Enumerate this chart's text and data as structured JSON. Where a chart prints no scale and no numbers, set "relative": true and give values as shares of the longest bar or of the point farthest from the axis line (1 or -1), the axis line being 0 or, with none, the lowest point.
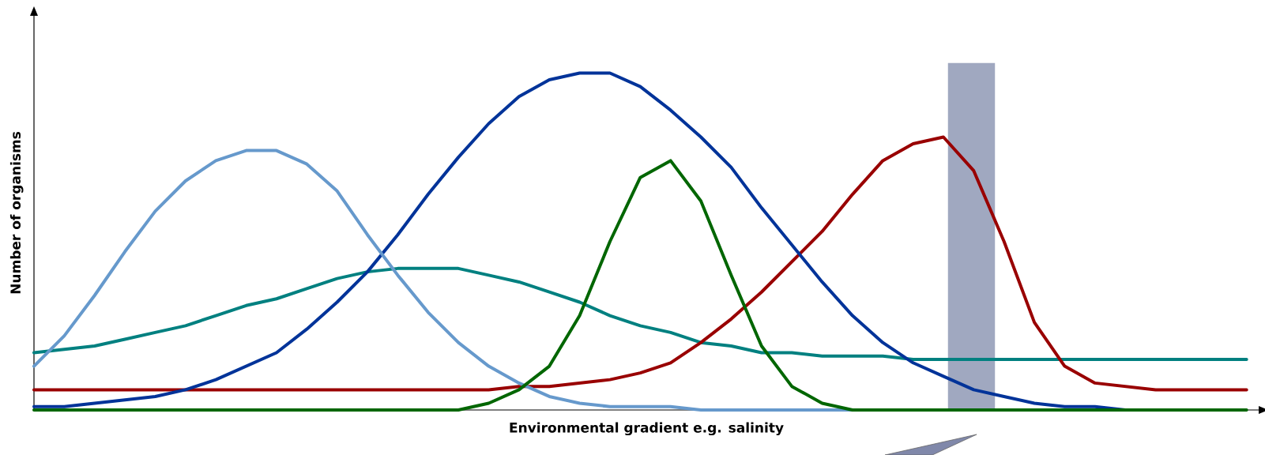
{
  "chart_data": {
    "type": "line",
    "relative": true,
    "xlabel": "Environmental gradient e.g. salinity",
    "ylabel": "Number of organisms",
    "categories": [
      null,
      null,
      null,
      null,
      null,
      null,
      null,
      null,
      null,
      null,
      null,
      null,
      null,
      null,
      null,
      null,
      null,
      null,
      null,
      null,
      null,
      null,
      null,
      null,
      null,
      null,
      null,
      null,
      null,
      null,
      null,
      null,
      null,
      null,
      null,
      null,
      null,
      null,
      null,
      null,
      null
    ],
    "series": [
      {
        "color": "#008080",
        "values": [
          0.17,
          0.18,
          0.19,
          0.21,
          0.23,
          0.25,
          0.28,
          0.31,
          0.33,
          0.36,
          0.39,
          0.41,
          0.42,
          0.42,
          0.42,
          0.4,
          0.38,
          0.35,
          0.32,
          0.28,
          0.25,
          0.23,
          0.2,
          0.19,
          0.17,
          0.17,
          0.16,
          0.16,
          0.16,
          0.15,
          0.15,
          0.15,
          0.15,
          0.15,
          0.15,
          0.15,
          0.15,
          0.15,
          0.15,
          0.15,
          0.15
        ]
      },
      {
        "color": "#990000",
        "values": [
          0.06,
          0.06,
          0.06,
          0.06,
          0.06,
          0.06,
          0.06,
          0.06,
          0.06,
          0.06,
          0.06,
          0.06,
          0.06,
          0.06,
          0.06,
          0.06,
          0.07,
          0.07,
          0.08,
          0.09,
          0.11,
          0.14,
          0.2,
          0.27,
          0.35,
          0.44,
          0.53,
          0.64,
          0.74,
          0.79,
          0.81,
          0.71,
          0.5,
          0.26,
          0.13,
          0.08,
          0.07,
          0.06,
          0.06,
          0.06,
          0.06
        ]
      },
      {
        "color": "#003399",
        "values": [
          0.01,
          0.01,
          0.02,
          0.03,
          0.04,
          0.06,
          0.09,
          0.13,
          0.17,
          0.24,
          0.32,
          0.41,
          0.52,
          0.64,
          0.75,
          0.85,
          0.93,
          0.98,
          1.0,
          1.0,
          0.96,
          0.89,
          0.81,
          0.72,
          0.6,
          0.49,
          0.38,
          0.28,
          0.2,
          0.14,
          0.1,
          0.06,
          0.04,
          0.02,
          0.01,
          0.01,
          0,
          0,
          null,
          null,
          null
        ]
      },
      {
        "color": "#6699cc",
        "values": [
          0.13,
          0.22,
          0.34,
          0.47,
          0.59,
          0.68,
          0.74,
          0.77,
          0.77,
          0.73,
          0.65,
          0.52,
          0.4,
          0.29,
          0.2,
          0.13,
          0.08,
          0.04,
          0.02,
          0.01,
          0.01,
          0.01,
          0,
          0,
          0,
          0,
          0,
          0,
          null,
          null,
          null,
          null,
          null,
          null,
          null,
          null,
          null,
          null,
          null,
          null,
          null
        ]
      },
      {
        "color": "#006600",
        "values": [
          0,
          0,
          0,
          0,
          0,
          0,
          0,
          0,
          0,
          0,
          0,
          0,
          0,
          0,
          0,
          0.02,
          0.06,
          0.13,
          0.28,
          0.5,
          0.69,
          0.74,
          0.62,
          0.4,
          0.19,
          0.07,
          0.02,
          0,
          0,
          0,
          0,
          0,
          0,
          0,
          0,
          0,
          0,
          0,
          0,
          0,
          0
        ]
      }
    ]
  }
}
